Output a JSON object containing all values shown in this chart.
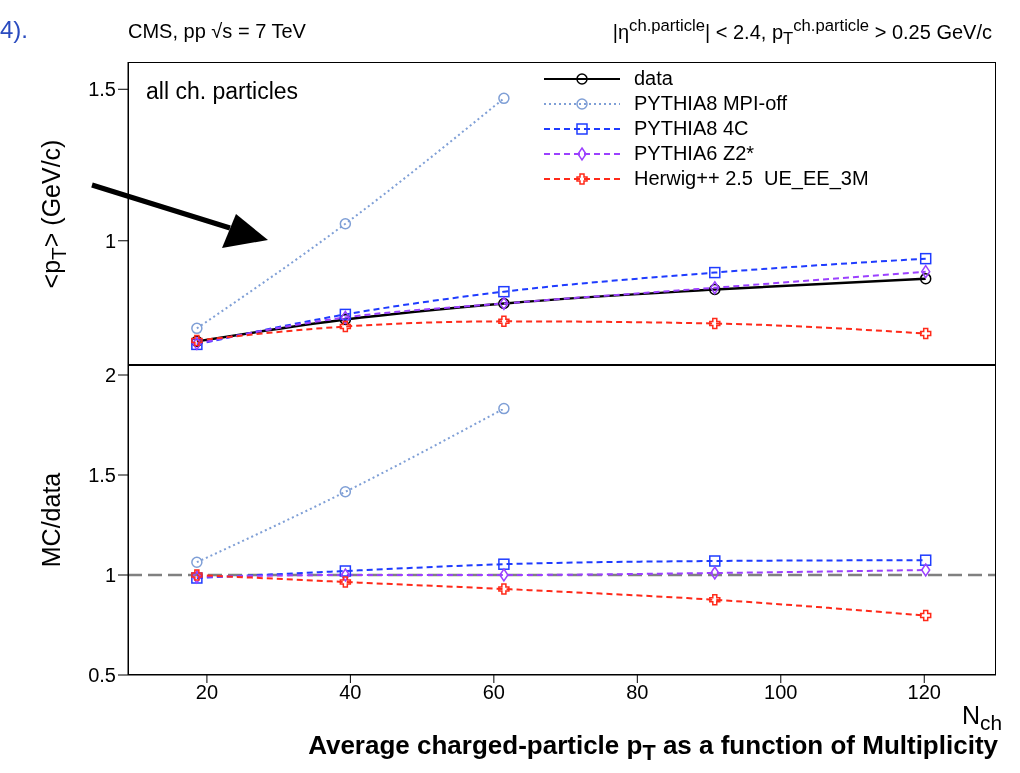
{
  "chart_data": [
    {
      "type": "line",
      "ylabel": "<p$_{T}$> (GeV/c)",
      "annotations": [
        "4).",
        "CMS, pp √s = 7 TeV",
        "|η$^{ch.particle}$| < 2.4, p$_{T}$$^{ch.particle}$ > 0.25 GeV/c",
        "all ch. particles"
      ],
      "x": [
        18.6,
        39.3,
        61.4,
        90.8,
        120.2
      ],
      "xlim": [
        9,
        130
      ],
      "xticks": [
        20,
        40,
        60,
        80,
        100,
        120
      ],
      "ylim": [
        0.59,
        1.59
      ],
      "yticks": [
        1,
        1.5
      ],
      "tick_labels": "y",
      "legend": "top right",
      "series": [
        {
          "name": "data",
          "color": "#000000",
          "marker": "circle",
          "line_style": "solid",
          "values": [
            0.668,
            0.74,
            0.793,
            0.839,
            0.875
          ]
        },
        {
          "name": "PYTHIA8 MPI-off",
          "color": "#7f9fd6",
          "marker": "circle",
          "line_style": "dotted",
          "values": [
            0.711,
            1.056,
            1.47,
            null,
            null
          ]
        },
        {
          "name": "PYTHIA8 4C",
          "color": "#1f3cff",
          "marker": "square",
          "line_style": "dashed",
          "values": [
            0.658,
            0.757,
            0.832,
            0.895,
            0.941
          ]
        },
        {
          "name": "PYTHIA6 Z2*",
          "color": "#9b40ff",
          "marker": "diamond",
          "line_style": "dashed",
          "values": [
            0.661,
            0.747,
            0.793,
            0.845,
            0.898
          ]
        },
        {
          "name": "Herwig++ 2.5  UE_EE_3M",
          "color": "#ff2a1a",
          "marker": "cross",
          "line_style": "dashed",
          "values": [
            0.671,
            0.717,
            0.734,
            0.727,
            0.694
          ]
        }
      ]
    },
    {
      "type": "line",
      "ylabel": "MC/data",
      "xlabel": "N$_{ch}$",
      "annotations": [
        "Average charged-particle p$_{T}$ as a function of Multiplicity"
      ],
      "x": [
        18.6,
        39.3,
        61.4,
        90.8,
        120.2
      ],
      "xlim": [
        9,
        130
      ],
      "xticks": [
        20,
        40,
        60,
        80,
        100,
        120
      ],
      "ylim": [
        0.5,
        2.05
      ],
      "yticks": [
        0.5,
        1,
        1.5,
        2
      ],
      "ref_lines": [
        {
          "axis": "y",
          "value": 1,
          "color": "#808080",
          "line_style": "dashed"
        }
      ],
      "series": [
        {
          "color": "#7f9fd6",
          "marker": "circle",
          "line_style": "dotted",
          "values": [
            1.064,
            1.416,
            1.832,
            null,
            null
          ]
        },
        {
          "color": "#1f3cff",
          "marker": "square",
          "line_style": "dashed",
          "values": [
            0.985,
            1.02,
            1.054,
            1.07,
            1.074
          ]
        },
        {
          "color": "#9b40ff",
          "marker": "diamond",
          "line_style": "dashed",
          "values": [
            0.99,
            1.0,
            1.0,
            1.01,
            1.025
          ]
        },
        {
          "color": "#ff2a1a",
          "marker": "cross",
          "line_style": "dashed",
          "values": [
            1.0,
            0.965,
            0.93,
            0.876,
            0.797
          ]
        }
      ]
    }
  ]
}
